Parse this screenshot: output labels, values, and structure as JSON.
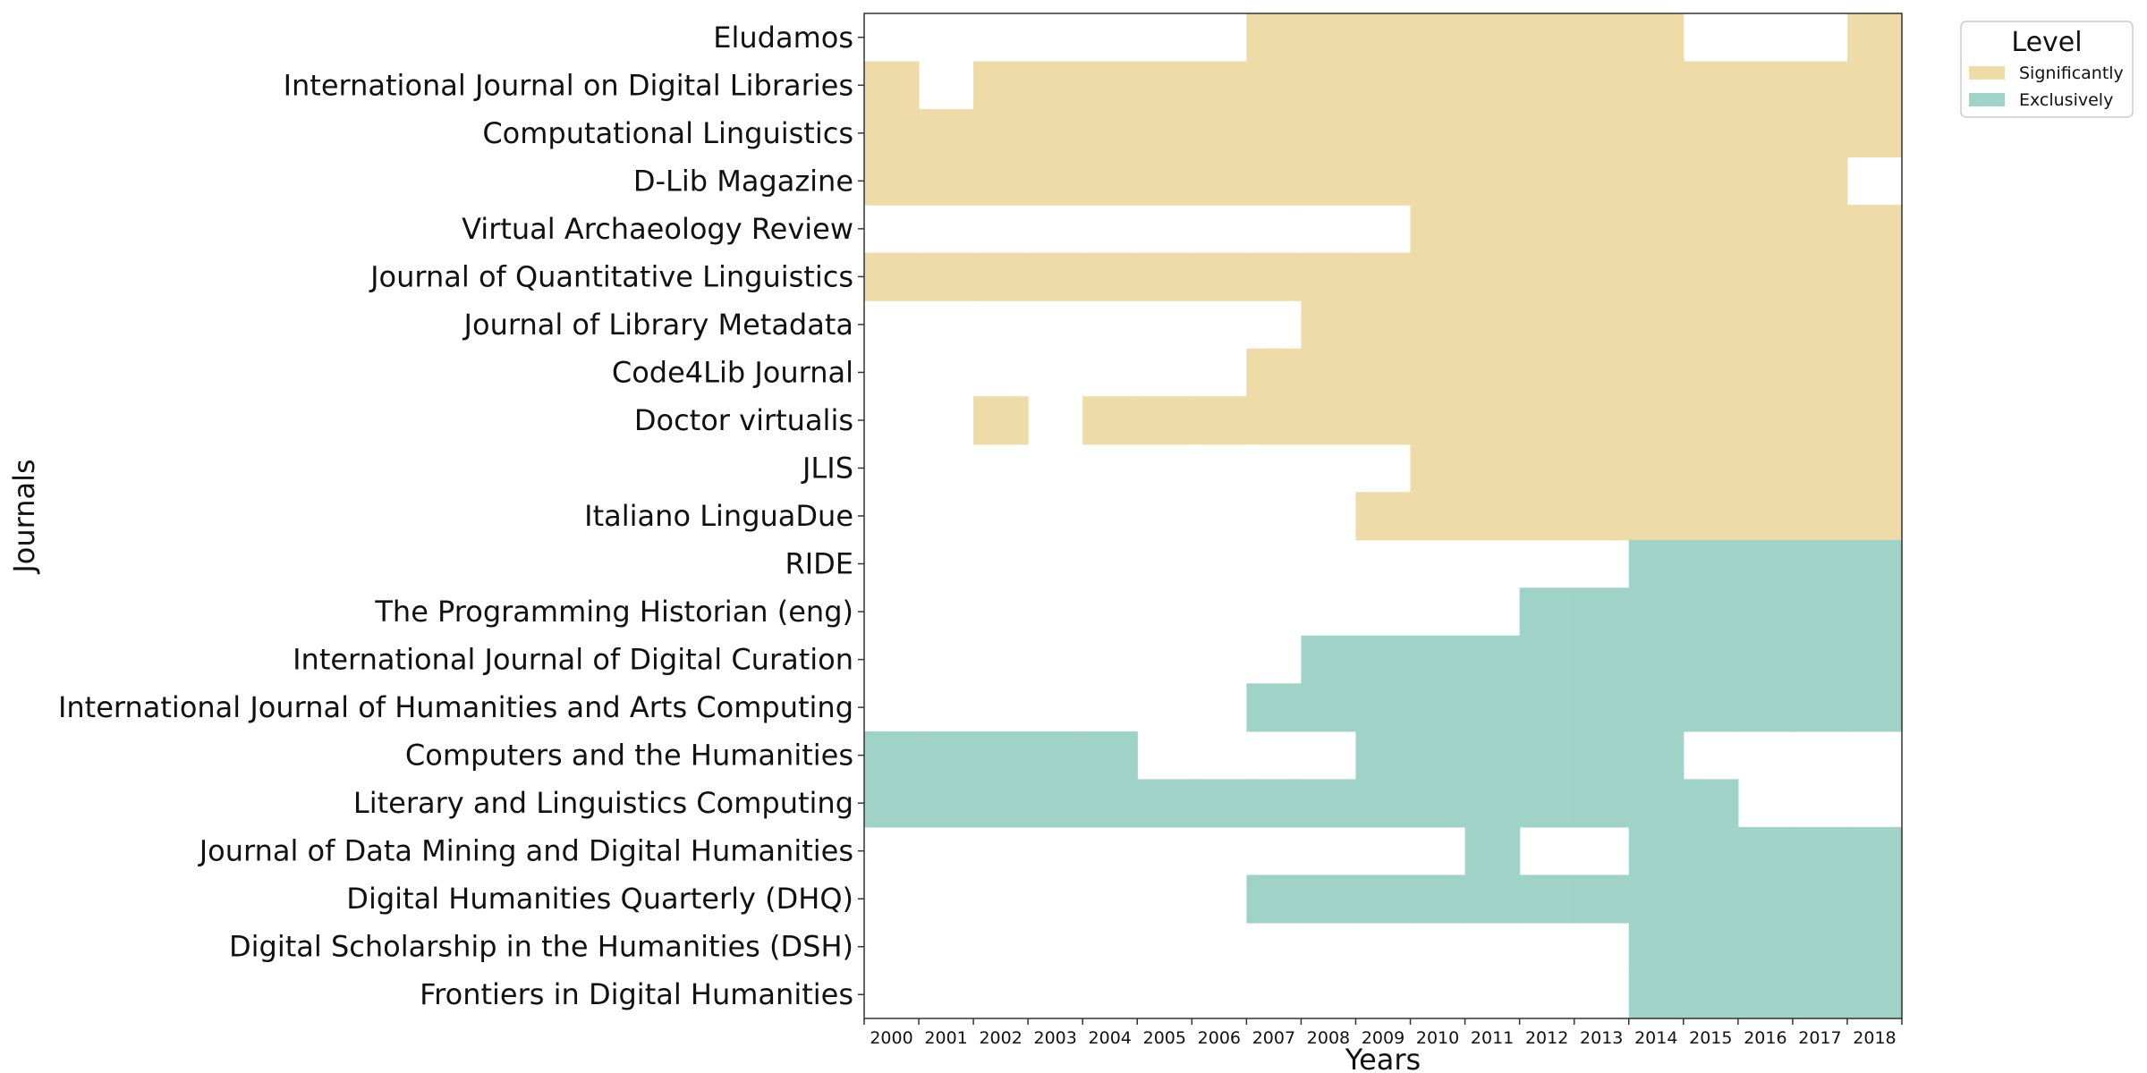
{
  "chart_data": {
    "type": "heatmap",
    "xlabel": "Years",
    "ylabel": "Journals",
    "x": [
      "2000",
      "2001",
      "2002",
      "2003",
      "2004",
      "2005",
      "2006",
      "2007",
      "2008",
      "2009",
      "2010",
      "2011",
      "2012",
      "2013",
      "2014",
      "2015",
      "2016",
      "2017",
      "2018"
    ],
    "legend": {
      "title": "Level",
      "placement": "outside-top-right",
      "entries": [
        {
          "name": "Significantly",
          "color": "#eedba8"
        },
        {
          "name": "Exclusively",
          "color": "#9fd3c7"
        }
      ]
    },
    "colors": {
      "Significantly": "#eedba8",
      "Exclusively": "#9fd3c7"
    },
    "rows": [
      {
        "journal": "Eludamos",
        "level": "Significantly",
        "years": [
          "2007",
          "2008",
          "2009",
          "2010",
          "2011",
          "2012",
          "2013",
          "2014",
          "2018"
        ]
      },
      {
        "journal": "International Journal on Digital Libraries",
        "level": "Significantly",
        "years": [
          "2000",
          "2002",
          "2003",
          "2004",
          "2005",
          "2006",
          "2007",
          "2008",
          "2009",
          "2010",
          "2011",
          "2012",
          "2013",
          "2014",
          "2015",
          "2016",
          "2017",
          "2018"
        ]
      },
      {
        "journal": "Computational Linguistics",
        "level": "Significantly",
        "years": [
          "2000",
          "2001",
          "2002",
          "2003",
          "2004",
          "2005",
          "2006",
          "2007",
          "2008",
          "2009",
          "2010",
          "2011",
          "2012",
          "2013",
          "2014",
          "2015",
          "2016",
          "2017",
          "2018"
        ]
      },
      {
        "journal": "D-Lib Magazine",
        "level": "Significantly",
        "years": [
          "2000",
          "2001",
          "2002",
          "2003",
          "2004",
          "2005",
          "2006",
          "2007",
          "2008",
          "2009",
          "2010",
          "2011",
          "2012",
          "2013",
          "2014",
          "2015",
          "2016",
          "2017"
        ]
      },
      {
        "journal": "Virtual Archaeology Review",
        "level": "Significantly",
        "years": [
          "2010",
          "2011",
          "2012",
          "2013",
          "2014",
          "2015",
          "2016",
          "2017",
          "2018"
        ]
      },
      {
        "journal": "Journal of Quantitative Linguistics",
        "level": "Significantly",
        "years": [
          "2000",
          "2001",
          "2002",
          "2003",
          "2004",
          "2005",
          "2006",
          "2007",
          "2008",
          "2009",
          "2010",
          "2011",
          "2012",
          "2013",
          "2014",
          "2015",
          "2016",
          "2017",
          "2018"
        ]
      },
      {
        "journal": "Journal of Library Metadata",
        "level": "Significantly",
        "years": [
          "2008",
          "2009",
          "2010",
          "2011",
          "2012",
          "2013",
          "2014",
          "2015",
          "2016",
          "2017",
          "2018"
        ]
      },
      {
        "journal": "Code4Lib Journal",
        "level": "Significantly",
        "years": [
          "2007",
          "2008",
          "2009",
          "2010",
          "2011",
          "2012",
          "2013",
          "2014",
          "2015",
          "2016",
          "2017",
          "2018"
        ]
      },
      {
        "journal": "Doctor virtualis",
        "level": "Significantly",
        "years": [
          "2002",
          "2004",
          "2005",
          "2006",
          "2007",
          "2008",
          "2009",
          "2010",
          "2011",
          "2012",
          "2013",
          "2014",
          "2015",
          "2016",
          "2017",
          "2018"
        ]
      },
      {
        "journal": "JLIS",
        "level": "Significantly",
        "years": [
          "2010",
          "2011",
          "2012",
          "2013",
          "2014",
          "2015",
          "2016",
          "2017",
          "2018"
        ]
      },
      {
        "journal": "Italiano LinguaDue",
        "level": "Significantly",
        "years": [
          "2009",
          "2010",
          "2011",
          "2012",
          "2013",
          "2014",
          "2015",
          "2016",
          "2017",
          "2018"
        ]
      },
      {
        "journal": "RIDE",
        "level": "Exclusively",
        "years": [
          "2014",
          "2015",
          "2016",
          "2017",
          "2018"
        ]
      },
      {
        "journal": "The Programming Historian (eng)",
        "level": "Exclusively",
        "years": [
          "2012",
          "2013",
          "2014",
          "2015",
          "2016",
          "2017",
          "2018"
        ]
      },
      {
        "journal": "International Journal of Digital Curation",
        "level": "Exclusively",
        "years": [
          "2008",
          "2009",
          "2010",
          "2011",
          "2012",
          "2013",
          "2014",
          "2015",
          "2016",
          "2017",
          "2018"
        ]
      },
      {
        "journal": "International Journal of Humanities and Arts Computing",
        "level": "Exclusively",
        "years": [
          "2007",
          "2008",
          "2009",
          "2010",
          "2011",
          "2012",
          "2013",
          "2014",
          "2015",
          "2016",
          "2017",
          "2018"
        ]
      },
      {
        "journal": "Computers and the Humanities",
        "level": "Exclusively",
        "years": [
          "2000",
          "2001",
          "2002",
          "2003",
          "2004",
          "2009",
          "2010",
          "2011",
          "2012",
          "2013",
          "2014"
        ]
      },
      {
        "journal": "Literary and Linguistics Computing",
        "level": "Exclusively",
        "years": [
          "2000",
          "2001",
          "2002",
          "2003",
          "2004",
          "2005",
          "2006",
          "2007",
          "2008",
          "2009",
          "2010",
          "2011",
          "2012",
          "2013",
          "2014",
          "2015"
        ]
      },
      {
        "journal": "Journal of Data Mining and Digital Humanities",
        "level": "Exclusively",
        "years": [
          "2011",
          "2014",
          "2015",
          "2016",
          "2017",
          "2018"
        ]
      },
      {
        "journal": "Digital Humanities Quarterly (DHQ)",
        "level": "Exclusively",
        "years": [
          "2007",
          "2008",
          "2009",
          "2010",
          "2011",
          "2012",
          "2013",
          "2014",
          "2015",
          "2016",
          "2017",
          "2018"
        ]
      },
      {
        "journal": "Digital Scholarship in the Humanities (DSH)",
        "level": "Exclusively",
        "years": [
          "2014",
          "2015",
          "2016",
          "2017",
          "2018"
        ]
      },
      {
        "journal": "Frontiers in Digital Humanities",
        "level": "Exclusively",
        "years": [
          "2014",
          "2015",
          "2016",
          "2017",
          "2018"
        ]
      }
    ]
  }
}
